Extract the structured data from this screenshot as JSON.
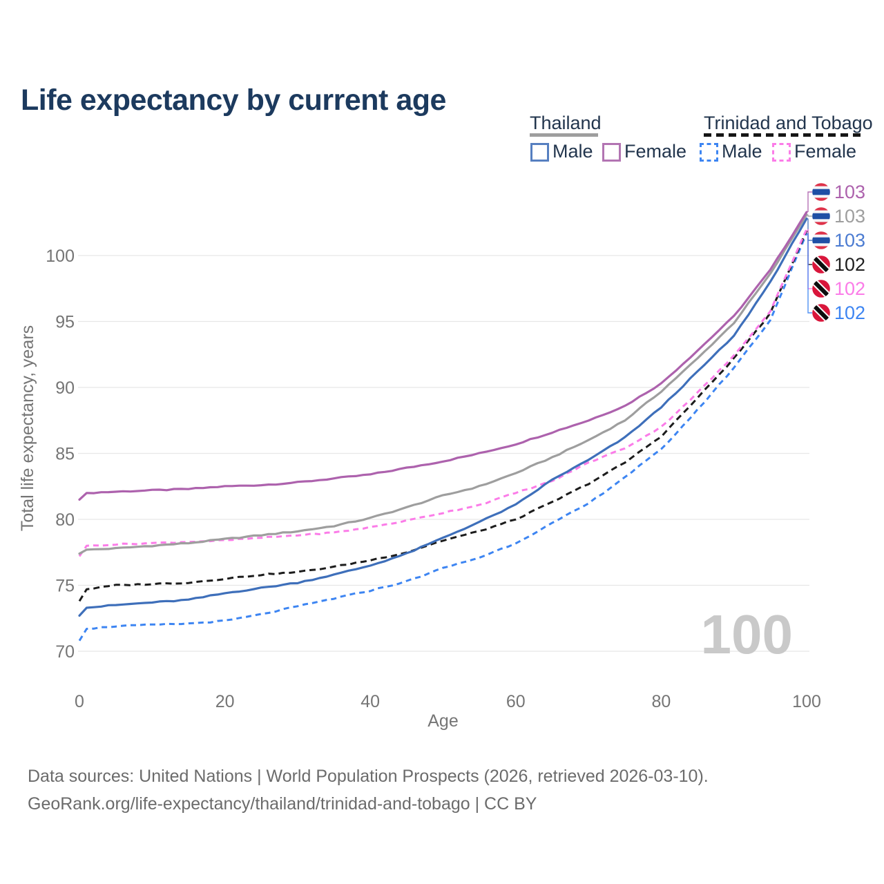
{
  "title": "Life expectancy by current age",
  "legend": {
    "groups": [
      {
        "label": "Thailand",
        "line_style": "solid",
        "line_color": "#9e9e9e",
        "items": [
          {
            "label": "Male",
            "color": "#3e6fba",
            "style": "solid"
          },
          {
            "label": "Female",
            "color": "#ad62ad",
            "style": "solid"
          }
        ]
      },
      {
        "label": "Trinidad and Tobago",
        "line_style": "dashed",
        "line_color": "#161616",
        "items": [
          {
            "label": "Male",
            "color": "#3d85f2",
            "style": "dashed"
          },
          {
            "label": "Female",
            "color": "#fb7ce8",
            "style": "dashed"
          }
        ]
      }
    ]
  },
  "footer": {
    "line1": "Data sources: United Nations | World Population Prospects (2026, retrieved 2026-03-10).",
    "line2": "GeoRank.org/life-expectancy/thailand/trinidad-and-tobago | CC BY"
  },
  "chart_data": {
    "type": "line",
    "title": "Life expectancy by current age",
    "xlabel": "Age",
    "ylabel": "Total life expectancy, years",
    "xlim": [
      0,
      100
    ],
    "ylim": [
      69.5,
      104
    ],
    "x_ticks": [
      0,
      20,
      40,
      60,
      80,
      100
    ],
    "y_ticks": [
      70,
      75,
      80,
      85,
      90,
      95,
      100
    ],
    "grid": "horizontal-only",
    "legend_position": "top-right",
    "watermark": "100",
    "x": [
      0,
      1,
      5,
      10,
      15,
      20,
      25,
      30,
      35,
      40,
      45,
      50,
      55,
      60,
      65,
      70,
      75,
      80,
      85,
      90,
      95,
      100
    ],
    "series": [
      {
        "country": "Thailand",
        "sex": "Female",
        "style": "solid",
        "color": "#ad62ad",
        "label_color": "#ad62ad",
        "flag": "thailand",
        "end_label": "103",
        "end_value": 103.3,
        "values": [
          81.5,
          82.0,
          82.1,
          82.2,
          82.3,
          82.5,
          82.6,
          82.8,
          83.1,
          83.4,
          83.9,
          84.4,
          85.0,
          85.7,
          86.6,
          87.5,
          88.6,
          90.3,
          92.8,
          95.4,
          98.9,
          103.3
        ]
      },
      {
        "country": "Thailand",
        "sex": "Both sexes",
        "style": "solid",
        "color": "#9e9e9e",
        "label_color": "#9e9e9e",
        "flag": "thailand",
        "end_label": "103",
        "end_value": 103.1,
        "values": [
          77.4,
          77.7,
          77.8,
          78.0,
          78.2,
          78.5,
          78.8,
          79.1,
          79.5,
          80.1,
          80.9,
          81.8,
          82.5,
          83.5,
          84.7,
          86.0,
          87.5,
          89.7,
          92.2,
          94.9,
          98.6,
          103.1
        ]
      },
      {
        "country": "Thailand",
        "sex": "Male",
        "style": "solid",
        "color": "#3e6fba",
        "label_color": "#4b7bd1",
        "flag": "thailand",
        "end_label": "103",
        "end_value": 102.8,
        "values": [
          72.7,
          73.3,
          73.5,
          73.7,
          73.9,
          74.4,
          74.8,
          75.2,
          75.8,
          76.5,
          77.4,
          78.6,
          79.8,
          81.1,
          83.0,
          84.5,
          86.2,
          88.5,
          91.2,
          93.9,
          98.0,
          102.8
        ]
      },
      {
        "country": "Trinidad and Tobago",
        "sex": "Both sexes",
        "style": "dashed",
        "color": "#1c1c1c",
        "label_color": "#1f1f1f",
        "flag": "trinidad-and-tobago",
        "end_label": "102",
        "end_value": 101.9,
        "values": [
          73.8,
          74.7,
          75.0,
          75.1,
          75.2,
          75.5,
          75.8,
          76.0,
          76.4,
          76.9,
          77.5,
          78.4,
          79.1,
          80.0,
          81.3,
          82.7,
          84.3,
          86.3,
          89.2,
          92.2,
          95.6,
          101.9
        ]
      },
      {
        "country": "Trinidad and Tobago",
        "sex": "Female",
        "style": "dashed",
        "color": "#fb7ce8",
        "label_color": "#fb7ce8",
        "flag": "trinidad-and-tobago",
        "end_label": "102",
        "end_value": 102.0,
        "values": [
          77.2,
          78.0,
          78.1,
          78.2,
          78.3,
          78.4,
          78.6,
          78.8,
          79.0,
          79.4,
          79.9,
          80.5,
          81.1,
          82.0,
          82.9,
          84.3,
          85.4,
          87.0,
          89.6,
          92.4,
          95.8,
          102.0
        ]
      },
      {
        "country": "Trinidad and Tobago",
        "sex": "Male",
        "style": "dashed",
        "color": "#3d85f2",
        "label_color": "#3d85f2",
        "flag": "trinidad-and-tobago",
        "end_label": "102",
        "end_value": 101.7,
        "values": [
          70.8,
          71.7,
          71.9,
          72.0,
          72.1,
          72.3,
          72.8,
          73.4,
          74.0,
          74.6,
          75.3,
          76.3,
          77.1,
          78.2,
          79.7,
          81.2,
          83.2,
          85.3,
          88.3,
          91.5,
          95.1,
          101.7
        ]
      }
    ]
  }
}
